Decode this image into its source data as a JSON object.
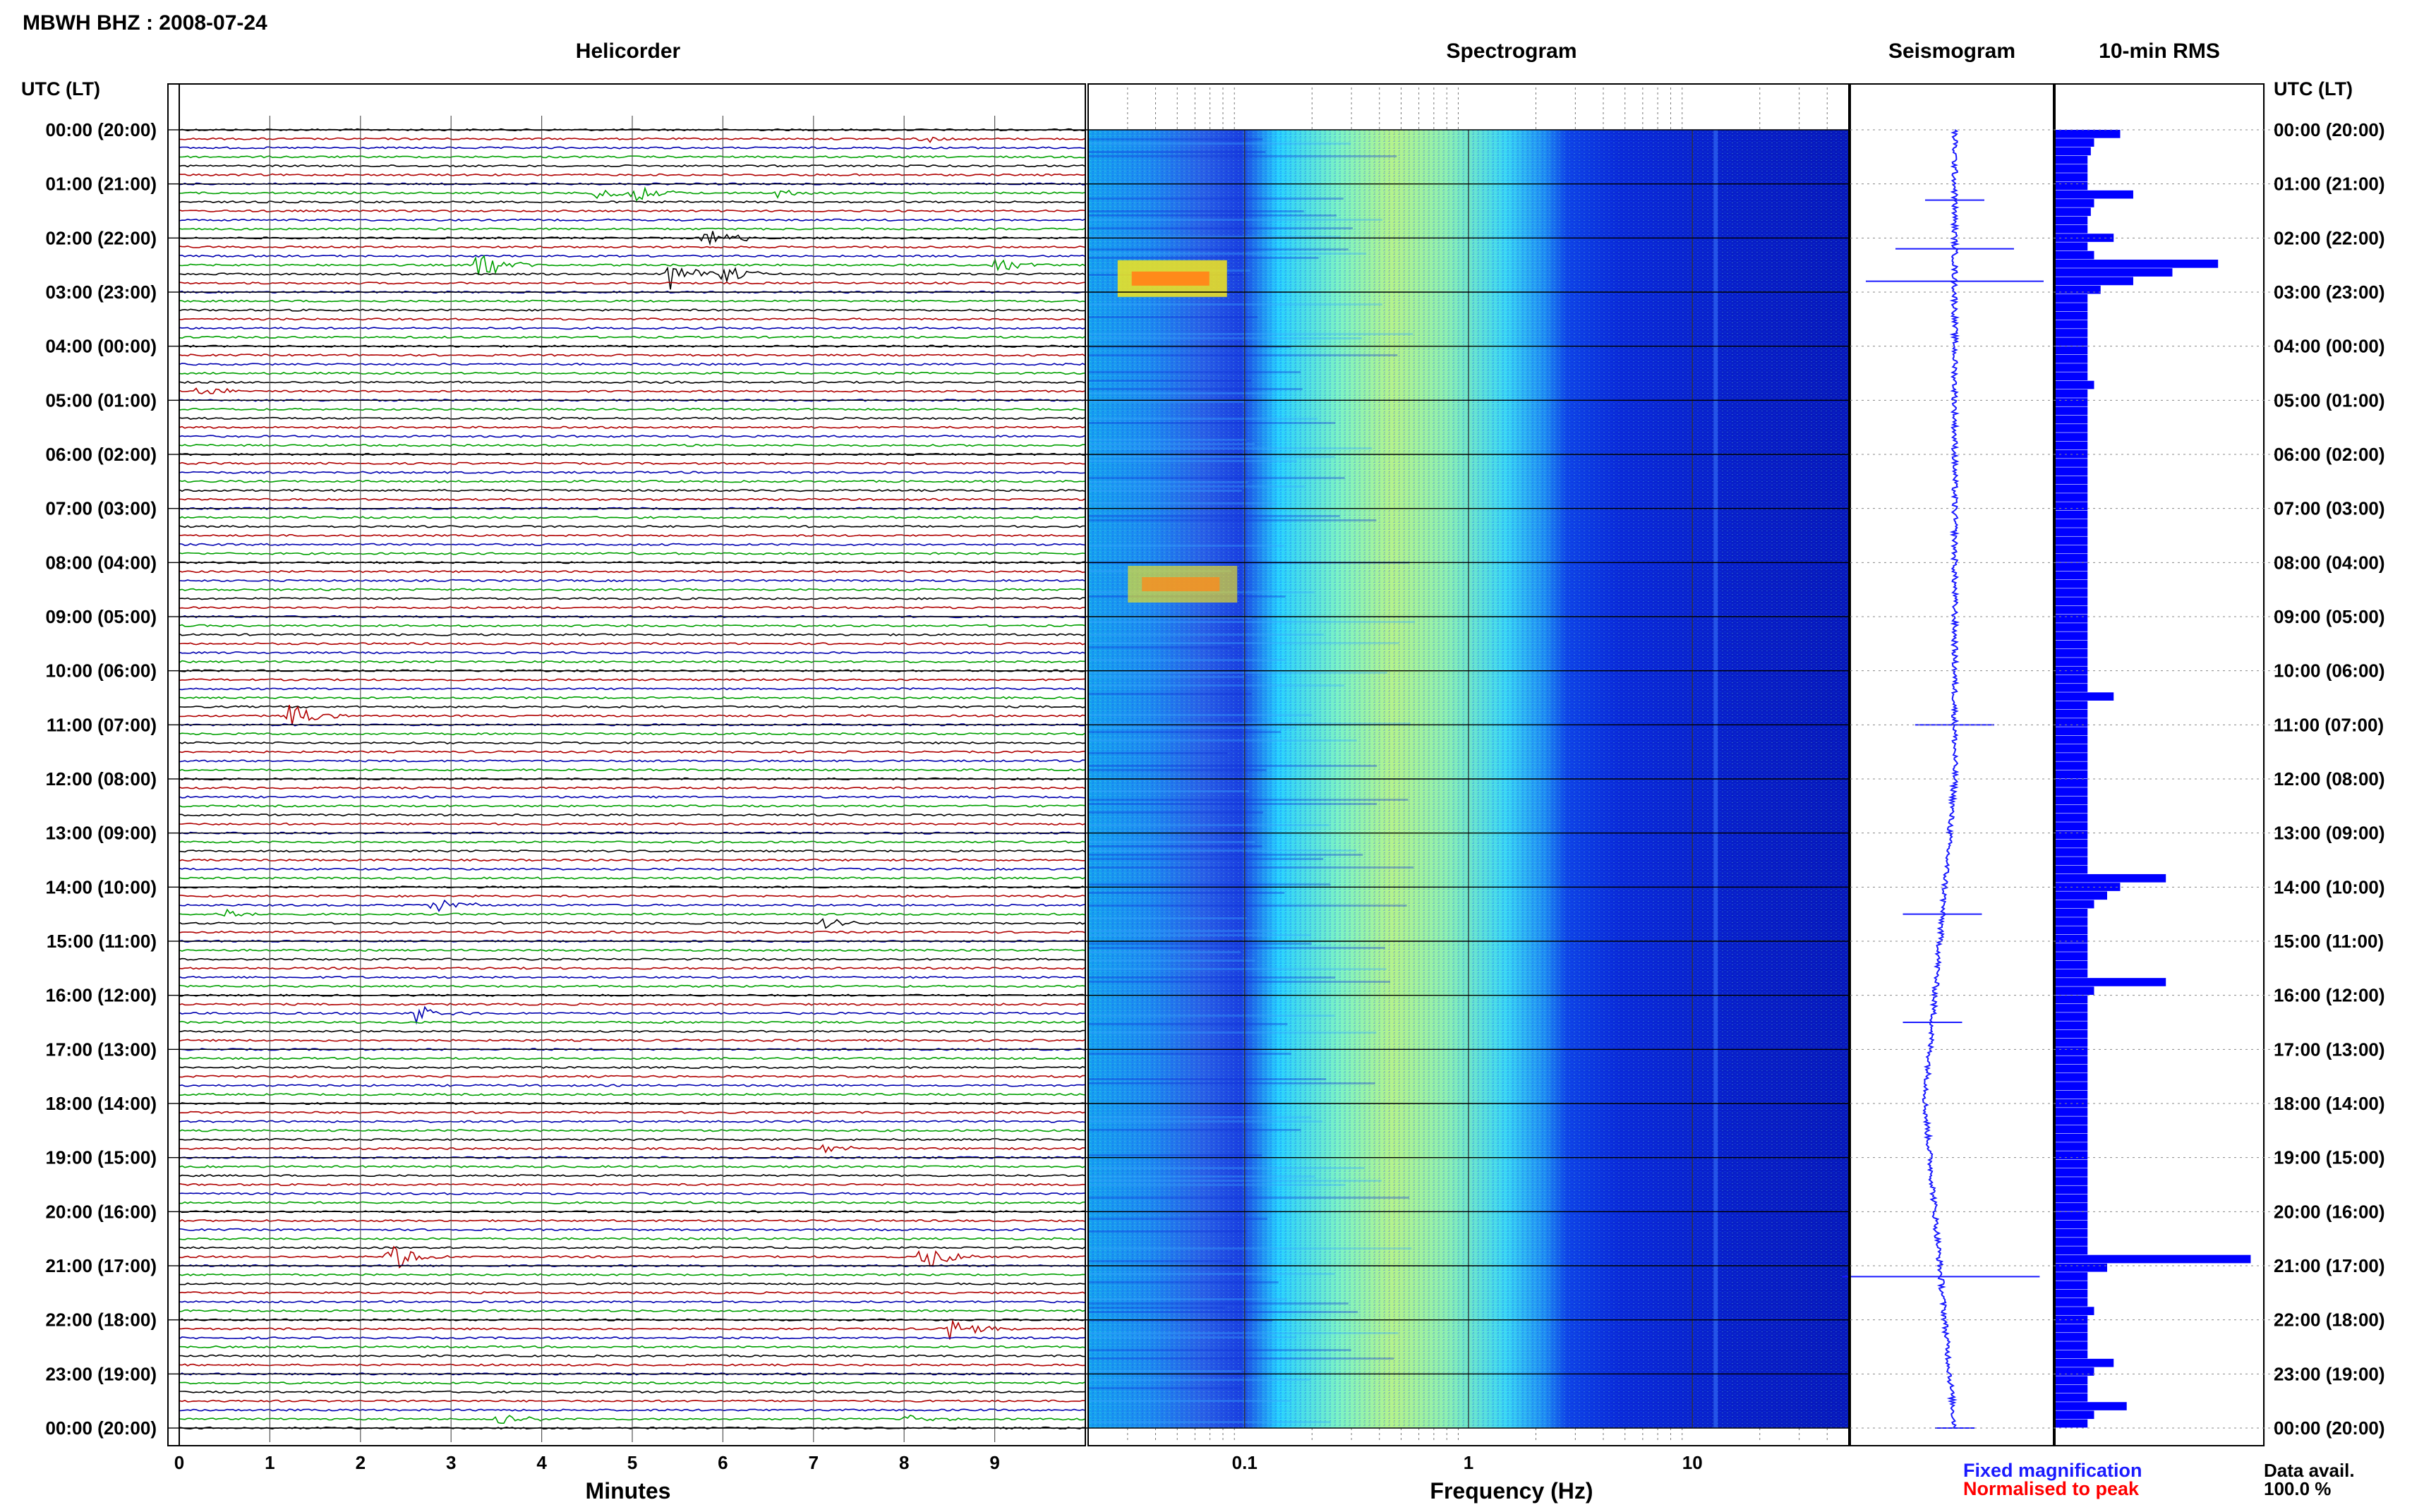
{
  "header": {
    "station_title": "MBWH BHZ : 2008-07-24"
  },
  "panels": {
    "helicorder_title": "Helicorder",
    "spectrogram_title": "Spectrogram",
    "seismogram_title": "Seismogram",
    "rms_title": "10-min RMS"
  },
  "axes": {
    "left_header": "UTC (LT)",
    "right_header": "UTC (LT)",
    "helicorder_xlabel": "Minutes",
    "spectrogram_xlabel": "Frequency (Hz)",
    "minute_ticks": [
      "0",
      "1",
      "2",
      "3",
      "4",
      "5",
      "6",
      "7",
      "8",
      "9"
    ],
    "frequency_ticks": [
      "0.1",
      "1",
      "10"
    ],
    "time_labels": [
      "00:00 (20:00)",
      "01:00 (21:00)",
      "02:00 (22:00)",
      "03:00 (23:00)",
      "04:00 (00:00)",
      "05:00 (01:00)",
      "06:00 (02:00)",
      "07:00 (03:00)",
      "08:00 (04:00)",
      "09:00 (05:00)",
      "10:00 (06:00)",
      "11:00 (07:00)",
      "12:00 (08:00)",
      "13:00 (09:00)",
      "14:00 (10:00)",
      "15:00 (11:00)",
      "16:00 (12:00)",
      "17:00 (13:00)",
      "18:00 (14:00)",
      "19:00 (15:00)",
      "20:00 (16:00)",
      "21:00 (17:00)",
      "22:00 (18:00)",
      "23:00 (19:00)",
      "00:00 (20:00)"
    ]
  },
  "legend": {
    "fixed_label": "Fixed magnification",
    "normalised_label": "Normalised to peak",
    "data_avail_label": "Data avail.",
    "data_avail_value": "100.0 %"
  },
  "colors": {
    "fixed": "#1a1aff",
    "normalised": "#ff0000",
    "trace_cycle": [
      "#000000",
      "#b00000",
      "#0000b0",
      "#00a000"
    ],
    "rms_bar": "#0000ff"
  },
  "chart_data": {
    "type": "heatmap",
    "time_range_hours": [
      0,
      24
    ],
    "helicorder": {
      "minutes_range": [
        0,
        10
      ],
      "lines_per_hour": 6,
      "events": [
        {
          "line": 1,
          "minute": 8.2,
          "amp": 0.3
        },
        {
          "line": 7,
          "minute": 5.0,
          "amp": 0.9
        },
        {
          "line": 7,
          "minute": 4.6,
          "amp": 0.5
        },
        {
          "line": 7,
          "minute": 6.6,
          "amp": 0.4
        },
        {
          "line": 12,
          "minute": 5.8,
          "amp": 1.2
        },
        {
          "line": 15,
          "minute": 3.3,
          "amp": 1.6
        },
        {
          "line": 15,
          "minute": 9.0,
          "amp": 0.6
        },
        {
          "line": 16,
          "minute": 5.4,
          "amp": 1.3
        },
        {
          "line": 16,
          "minute": 6.0,
          "amp": 0.8
        },
        {
          "line": 29,
          "minute": 0.2,
          "amp": 0.6
        },
        {
          "line": 65,
          "minute": 1.2,
          "amp": 1.1
        },
        {
          "line": 86,
          "minute": 2.8,
          "amp": 0.8
        },
        {
          "line": 87,
          "minute": 0.5,
          "amp": 0.6
        },
        {
          "line": 88,
          "minute": 7.1,
          "amp": 0.5
        },
        {
          "line": 98,
          "minute": 2.6,
          "amp": 1.0
        },
        {
          "line": 113,
          "minute": 7.1,
          "amp": 0.4
        },
        {
          "line": 125,
          "minute": 2.3,
          "amp": 1.5
        },
        {
          "line": 125,
          "minute": 8.2,
          "amp": 1.3
        },
        {
          "line": 133,
          "minute": 8.5,
          "amp": 1.0
        },
        {
          "line": 143,
          "minute": 3.5,
          "amp": 0.7
        },
        {
          "line": 143,
          "minute": 8.0,
          "amp": 0.4
        }
      ]
    },
    "spectrogram": {
      "frequency_range_hz": [
        0.02,
        50
      ],
      "frequency_scale": "log",
      "colormap": "jet",
      "hot_spots": [
        {
          "hour": 2.75,
          "freq_hz": 0.045,
          "level": 1.0
        },
        {
          "hour": 8.4,
          "freq_hz": 0.05,
          "level": 0.75
        }
      ],
      "narrow_bands_hz": [
        10
      ]
    },
    "seismogram": {
      "drift_hours": [
        0,
        4,
        8,
        12,
        14,
        16,
        18,
        20,
        22,
        24
      ],
      "drift_offset": [
        0,
        0,
        0,
        0,
        -2,
        -4,
        -6,
        -4,
        -2,
        0
      ],
      "spikes": [
        {
          "hour": 1.3,
          "amp": 0.3
        },
        {
          "hour": 2.2,
          "amp": 0.6
        },
        {
          "hour": 2.8,
          "amp": 0.9
        },
        {
          "hour": 11.0,
          "amp": 0.4
        },
        {
          "hour": 14.5,
          "amp": 0.4
        },
        {
          "hour": 16.5,
          "amp": 0.3
        },
        {
          "hour": 21.2,
          "amp": 1.0
        },
        {
          "hour": 24.0,
          "amp": 0.2
        }
      ]
    },
    "rms_10min": [
      1.0,
      0.6,
      0.55,
      0.5,
      0.5,
      0.5,
      0.5,
      1.2,
      0.6,
      0.55,
      0.5,
      0.5,
      0.9,
      0.5,
      0.6,
      2.5,
      1.8,
      1.2,
      0.7,
      0.5,
      0.5,
      0.5,
      0.5,
      0.5,
      0.5,
      0.5,
      0.5,
      0.5,
      0.5,
      0.6,
      0.5,
      0.5,
      0.5,
      0.5,
      0.5,
      0.5,
      0.5,
      0.5,
      0.5,
      0.5,
      0.5,
      0.5,
      0.5,
      0.5,
      0.5,
      0.5,
      0.5,
      0.5,
      0.5,
      0.5,
      0.5,
      0.5,
      0.5,
      0.5,
      0.5,
      0.5,
      0.5,
      0.5,
      0.5,
      0.5,
      0.5,
      0.5,
      0.5,
      0.5,
      0.5,
      0.9,
      0.5,
      0.5,
      0.5,
      0.5,
      0.5,
      0.5,
      0.5,
      0.5,
      0.5,
      0.5,
      0.5,
      0.5,
      0.5,
      0.5,
      0.5,
      0.5,
      0.5,
      0.5,
      0.5,
      0.5,
      1.7,
      1.0,
      0.8,
      0.6,
      0.5,
      0.5,
      0.5,
      0.5,
      0.5,
      0.5,
      0.5,
      0.5,
      1.7,
      0.6,
      0.5,
      0.5,
      0.5,
      0.5,
      0.5,
      0.5,
      0.5,
      0.5,
      0.5,
      0.5,
      0.5,
      0.5,
      0.5,
      0.5,
      0.5,
      0.5,
      0.5,
      0.5,
      0.5,
      0.5,
      0.5,
      0.5,
      0.5,
      0.5,
      0.5,
      0.5,
      0.5,
      0.5,
      0.5,
      0.5,
      3.0,
      0.8,
      0.5,
      0.5,
      0.5,
      0.5,
      0.6,
      0.5,
      0.5,
      0.5,
      0.5,
      0.5,
      0.9,
      0.6,
      0.5,
      0.5,
      0.5,
      1.1,
      0.6,
      0.5
    ]
  }
}
